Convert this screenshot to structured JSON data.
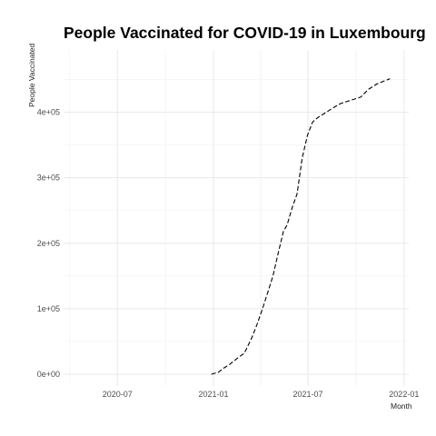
{
  "chart_data": {
    "type": "line",
    "title": "People Vaccinated for COVID-19 in Luxembourg",
    "xlabel": "Month",
    "ylabel": "People Vaccinated",
    "grid": true,
    "legend": "none",
    "line_style": "dashed",
    "x_range": [
      "2020-03-20",
      "2022-01-10"
    ],
    "ylim": [
      -18000,
      495000
    ],
    "x_ticks": [
      {
        "date": "2020-07-01",
        "label": "2020-07"
      },
      {
        "date": "2021-01-01",
        "label": "2021-01"
      },
      {
        "date": "2021-07-01",
        "label": "2021-07"
      },
      {
        "date": "2022-01-01",
        "label": "2022-01"
      }
    ],
    "y_ticks": [
      {
        "value": 0,
        "label": "0e+00"
      },
      {
        "value": 100000,
        "label": "1e+05"
      },
      {
        "value": 200000,
        "label": "2e+05"
      },
      {
        "value": 300000,
        "label": "3e+05"
      },
      {
        "value": 400000,
        "label": "4e+05"
      }
    ],
    "series": [
      {
        "name": "People Vaccinated",
        "x": [
          "2020-12-28",
          "2021-01-10",
          "2021-01-20",
          "2021-02-01",
          "2021-02-15",
          "2021-03-01",
          "2021-03-15",
          "2021-03-25",
          "2021-04-05",
          "2021-04-15",
          "2021-04-25",
          "2021-05-05",
          "2021-05-15",
          "2021-05-22",
          "2021-06-01",
          "2021-06-10",
          "2021-06-20",
          "2021-06-30",
          "2021-07-10",
          "2021-07-20",
          "2021-08-01",
          "2021-08-15",
          "2021-09-01",
          "2021-09-20",
          "2021-10-10",
          "2021-10-25",
          "2021-11-10",
          "2021-11-25",
          "2021-12-05"
        ],
        "y": [
          0,
          3000,
          9000,
          15000,
          24000,
          32000,
          55000,
          75000,
          100000,
          125000,
          150000,
          185000,
          218000,
          228000,
          255000,
          275000,
          330000,
          365000,
          385000,
          392000,
          398000,
          405000,
          413000,
          418000,
          423000,
          435000,
          443000,
          448000,
          451000
        ]
      }
    ]
  }
}
